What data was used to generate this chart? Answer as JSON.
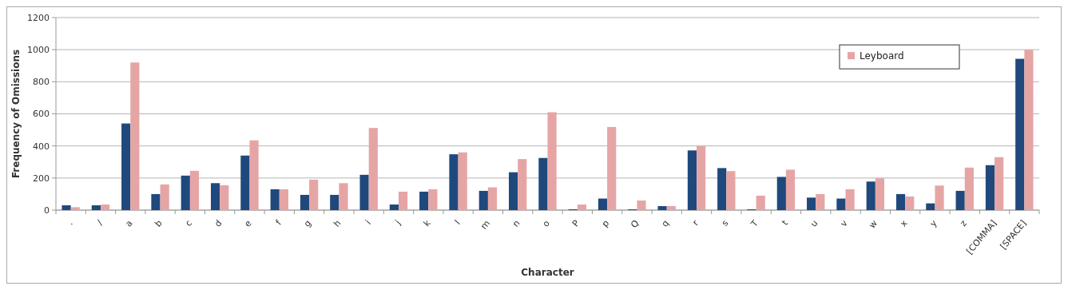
{
  "chart_data": {
    "type": "bar",
    "xlabel": "Character",
    "ylabel": "Frequency of Omissions",
    "categories": [
      ".",
      "/",
      "a",
      "b",
      "c",
      "d",
      "e",
      "f",
      "g",
      "h",
      "i",
      "j",
      "k",
      "l",
      "m",
      "n",
      "o",
      "P",
      "p",
      "Q",
      "q",
      "r",
      "s",
      "T",
      "t",
      "u",
      "v",
      "w",
      "x",
      "y",
      "z",
      "[COMMA]",
      "[SPACE]"
    ],
    "series": [
      {
        "color": "#1f497d",
        "values": [
          30,
          30,
          540,
          100,
          215,
          168,
          340,
          130,
          95,
          95,
          220,
          35,
          115,
          348,
          120,
          236,
          325,
          5,
          72,
          5,
          25,
          372,
          262,
          5,
          207,
          78,
          72,
          178,
          100,
          42,
          120,
          280,
          943
        ]
      },
      {
        "name": "Leyboard",
        "color": "#e6a5a5",
        "values": [
          18,
          35,
          920,
          160,
          245,
          155,
          435,
          130,
          190,
          168,
          512,
          115,
          130,
          360,
          142,
          318,
          610,
          35,
          518,
          60,
          25,
          400,
          243,
          90,
          252,
          100,
          130,
          198,
          85,
          153,
          265,
          330,
          1000
        ]
      }
    ],
    "ylim": [
      0,
      1200
    ],
    "yticks": [
      0,
      200,
      400,
      600,
      800,
      1000,
      1200
    ],
    "grid": "y",
    "legend": "top right"
  }
}
